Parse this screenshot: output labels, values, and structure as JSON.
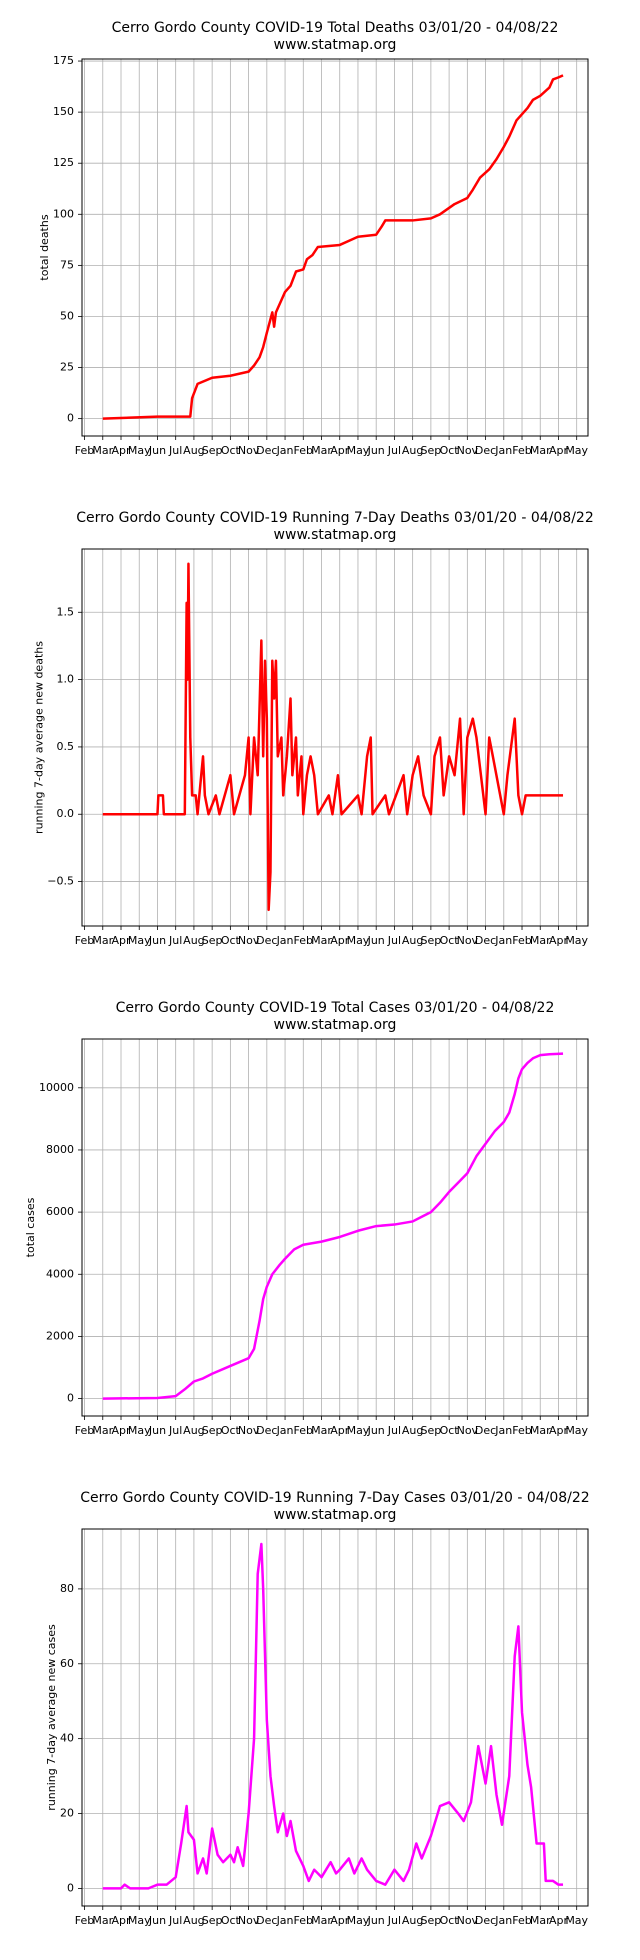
{
  "chart_data": [
    {
      "type": "line",
      "title": "Cerro Gordo County COVID-19 Total Deaths 03/01/20 - 04/08/22",
      "subtitle": "www.statmap.org",
      "y_label": "total deaths",
      "color": "#ff0000",
      "grid": true,
      "xlim": [
        -0.14,
        27.62
      ],
      "ylim": [
        -8.5,
        176
      ],
      "xticks": [
        {
          "value": 0,
          "label": "Feb"
        },
        {
          "value": 1,
          "label": "Mar"
        },
        {
          "value": 2,
          "label": "Apr"
        },
        {
          "value": 3,
          "label": "May"
        },
        {
          "value": 4,
          "label": "Jun"
        },
        {
          "value": 5,
          "label": "Jul"
        },
        {
          "value": 6,
          "label": "Aug"
        },
        {
          "value": 7,
          "label": "Sep"
        },
        {
          "value": 8,
          "label": "Oct"
        },
        {
          "value": 9,
          "label": "Nov"
        },
        {
          "value": 10,
          "label": "Dec"
        },
        {
          "value": 11,
          "label": "Jan"
        },
        {
          "value": 12,
          "label": "Feb"
        },
        {
          "value": 13,
          "label": "Mar"
        },
        {
          "value": 14,
          "label": "Apr"
        },
        {
          "value": 15,
          "label": "May"
        },
        {
          "value": 16,
          "label": "Jun"
        },
        {
          "value": 17,
          "label": "Jul"
        },
        {
          "value": 18,
          "label": "Aug"
        },
        {
          "value": 19,
          "label": "Sep"
        },
        {
          "value": 20,
          "label": "Oct"
        },
        {
          "value": 21,
          "label": "Nov"
        },
        {
          "value": 22,
          "label": "Dec"
        },
        {
          "value": 23,
          "label": "Jan"
        },
        {
          "value": 24,
          "label": "Feb"
        },
        {
          "value": 25,
          "label": "Mar"
        },
        {
          "value": 26,
          "label": "Apr"
        },
        {
          "value": 27,
          "label": "May"
        }
      ],
      "yticks": [
        0,
        25,
        50,
        75,
        100,
        125,
        150,
        175
      ],
      "x": [
        1,
        4,
        5.8,
        5.9,
        6.2,
        7,
        8,
        9,
        9.3,
        9.6,
        9.8,
        10,
        10.3,
        10.4,
        10.5,
        10.8,
        11,
        11.3,
        11.6,
        12,
        12.2,
        12.5,
        12.8,
        14,
        14.5,
        15,
        16,
        16.3,
        16.5,
        18,
        19,
        19.5,
        20.3,
        21,
        21.3,
        21.7,
        22.2,
        22.6,
        23,
        23.3,
        23.7,
        24.3,
        24.6,
        25,
        25.5,
        25.7,
        26,
        26.25
      ],
      "values": [
        0,
        1,
        1,
        10,
        17,
        20,
        21,
        23,
        26,
        30,
        35,
        42,
        52,
        45,
        52,
        58,
        62,
        65,
        72,
        73,
        78,
        80,
        84,
        85,
        87,
        89,
        90,
        94,
        97,
        97,
        98,
        100,
        105,
        108,
        112,
        118,
        122,
        127,
        133,
        138,
        146,
        152,
        156,
        158,
        162,
        166,
        167,
        168
      ]
    },
    {
      "type": "line",
      "title": "Cerro Gordo County COVID-19 Running 7-Day Deaths 03/01/20 - 04/08/22",
      "subtitle": "www.statmap.org",
      "y_label": "running 7-day average new deaths",
      "color": "#ff0000",
      "grid": true,
      "xlim": [
        -0.14,
        27.62
      ],
      "ylim": [
        -0.83,
        1.97
      ],
      "xticks": [
        {
          "value": 0,
          "label": "Feb"
        },
        {
          "value": 1,
          "label": "Mar"
        },
        {
          "value": 2,
          "label": "Apr"
        },
        {
          "value": 3,
          "label": "May"
        },
        {
          "value": 4,
          "label": "Jun"
        },
        {
          "value": 5,
          "label": "Jul"
        },
        {
          "value": 6,
          "label": "Aug"
        },
        {
          "value": 7,
          "label": "Sep"
        },
        {
          "value": 8,
          "label": "Oct"
        },
        {
          "value": 9,
          "label": "Nov"
        },
        {
          "value": 10,
          "label": "Dec"
        },
        {
          "value": 11,
          "label": "Jan"
        },
        {
          "value": 12,
          "label": "Feb"
        },
        {
          "value": 13,
          "label": "Mar"
        },
        {
          "value": 14,
          "label": "Apr"
        },
        {
          "value": 15,
          "label": "May"
        },
        {
          "value": 16,
          "label": "Jun"
        },
        {
          "value": 17,
          "label": "Jul"
        },
        {
          "value": 18,
          "label": "Aug"
        },
        {
          "value": 19,
          "label": "Sep"
        },
        {
          "value": 20,
          "label": "Oct"
        },
        {
          "value": 21,
          "label": "Nov"
        },
        {
          "value": 22,
          "label": "Dec"
        },
        {
          "value": 23,
          "label": "Jan"
        },
        {
          "value": 24,
          "label": "Feb"
        },
        {
          "value": 25,
          "label": "Mar"
        },
        {
          "value": 26,
          "label": "Apr"
        },
        {
          "value": 27,
          "label": "May"
        }
      ],
      "yticks": [
        {
          "value": -0.5,
          "label": "−0.5"
        },
        {
          "value": 0,
          "label": "0.0"
        },
        0.5,
        {
          "value": 1,
          "label": "1.0"
        },
        1.5
      ],
      "x": [
        1,
        4,
        4.05,
        4.3,
        4.35,
        5.5,
        5.6,
        5.65,
        5.7,
        5.8,
        5.9,
        6.1,
        6.2,
        6.4,
        6.5,
        6.6,
        6.8,
        7.2,
        7.4,
        8,
        8.2,
        8.8,
        9,
        9.1,
        9.3,
        9.5,
        9.7,
        9.8,
        9.9,
        10,
        10.1,
        10.2,
        10.3,
        10.4,
        10.5,
        10.6,
        10.8,
        10.9,
        11.1,
        11.3,
        11.4,
        11.6,
        11.7,
        11.9,
        12,
        12.2,
        12.4,
        12.6,
        12.8,
        13.4,
        13.6,
        13.9,
        14.1,
        15,
        15.2,
        15.5,
        15.7,
        15.8,
        16.5,
        16.7,
        17.5,
        17.7,
        18,
        18.3,
        18.6,
        19,
        19.2,
        19.5,
        19.7,
        20,
        20.3,
        20.6,
        20.8,
        21,
        21.3,
        21.5,
        22,
        22.2,
        22.4,
        23,
        23.2,
        23.6,
        23.8,
        24,
        24.2,
        26.25
      ],
      "values": [
        0,
        0,
        0.14,
        0.14,
        0,
        0,
        1.57,
        1,
        1.86,
        0.57,
        0.14,
        0.14,
        0,
        0.29,
        0.43,
        0.14,
        0,
        0.14,
        0,
        0.29,
        0,
        0.29,
        0.57,
        0,
        0.57,
        0.29,
        1.29,
        0.43,
        1.14,
        0.71,
        -0.71,
        -0.43,
        1.14,
        0.86,
        1.14,
        0.43,
        0.57,
        0.14,
        0.43,
        0.86,
        0.29,
        0.57,
        0.14,
        0.43,
        0,
        0.29,
        0.43,
        0.29,
        0,
        0.14,
        0,
        0.29,
        0,
        0.14,
        0,
        0.43,
        0.57,
        0,
        0.14,
        0,
        0.29,
        0,
        0.29,
        0.43,
        0.14,
        0,
        0.43,
        0.57,
        0.14,
        0.43,
        0.29,
        0.71,
        0,
        0.57,
        0.71,
        0.57,
        0,
        0.57,
        0.43,
        0,
        0.29,
        0.71,
        0.14,
        0,
        0.14,
        0.14
      ]
    },
    {
      "type": "line",
      "title": "Cerro Gordo County COVID-19 Total Cases 03/01/20 - 04/08/22",
      "subtitle": "www.statmap.org",
      "y_label": "total cases",
      "color": "#ff00ff",
      "grid": true,
      "xlim": [
        -0.14,
        27.62
      ],
      "ylim": [
        -560,
        11570
      ],
      "xticks": [
        {
          "value": 0,
          "label": "Feb"
        },
        {
          "value": 1,
          "label": "Mar"
        },
        {
          "value": 2,
          "label": "Apr"
        },
        {
          "value": 3,
          "label": "May"
        },
        {
          "value": 4,
          "label": "Jun"
        },
        {
          "value": 5,
          "label": "Jul"
        },
        {
          "value": 6,
          "label": "Aug"
        },
        {
          "value": 7,
          "label": "Sep"
        },
        {
          "value": 8,
          "label": "Oct"
        },
        {
          "value": 9,
          "label": "Nov"
        },
        {
          "value": 10,
          "label": "Dec"
        },
        {
          "value": 11,
          "label": "Jan"
        },
        {
          "value": 12,
          "label": "Feb"
        },
        {
          "value": 13,
          "label": "Mar"
        },
        {
          "value": 14,
          "label": "Apr"
        },
        {
          "value": 15,
          "label": "May"
        },
        {
          "value": 16,
          "label": "Jun"
        },
        {
          "value": 17,
          "label": "Jul"
        },
        {
          "value": 18,
          "label": "Aug"
        },
        {
          "value": 19,
          "label": "Sep"
        },
        {
          "value": 20,
          "label": "Oct"
        },
        {
          "value": 21,
          "label": "Nov"
        },
        {
          "value": 22,
          "label": "Dec"
        },
        {
          "value": 23,
          "label": "Jan"
        },
        {
          "value": 24,
          "label": "Feb"
        },
        {
          "value": 25,
          "label": "Mar"
        },
        {
          "value": 26,
          "label": "Apr"
        },
        {
          "value": 27,
          "label": "May"
        }
      ],
      "yticks": [
        0,
        2000,
        4000,
        6000,
        8000,
        10000
      ],
      "x": [
        1,
        4,
        5,
        5.5,
        6,
        6.5,
        7,
        8,
        9,
        9.3,
        9.6,
        9.8,
        10,
        10.3,
        10.7,
        11,
        11.5,
        12,
        13,
        14,
        15,
        16,
        17,
        18,
        18.5,
        19,
        19.5,
        20,
        20.5,
        21,
        21.5,
        22,
        22.5,
        23,
        23.3,
        23.6,
        23.8,
        24,
        24.3,
        24.6,
        25,
        25.5,
        26.25
      ],
      "values": [
        0,
        20,
        80,
        300,
        550,
        650,
        800,
        1050,
        1300,
        1600,
        2500,
        3200,
        3600,
        4000,
        4300,
        4500,
        4800,
        4950,
        5050,
        5200,
        5400,
        5550,
        5600,
        5700,
        5850,
        6000,
        6300,
        6650,
        6950,
        7250,
        7800,
        8200,
        8600,
        8900,
        9200,
        9800,
        10300,
        10600,
        10800,
        10950,
        11050,
        11080,
        11100
      ]
    },
    {
      "type": "line",
      "title": "Cerro Gordo County COVID-19 Running 7-Day Cases 03/01/20 - 04/08/22",
      "subtitle": "www.statmap.org",
      "y_label": "running 7-day average new cases",
      "color": "#ff00ff",
      "grid": true,
      "xlim": [
        -0.14,
        27.62
      ],
      "ylim": [
        -4.7,
        96
      ],
      "xticks": [
        {
          "value": 0,
          "label": "Feb"
        },
        {
          "value": 1,
          "label": "Mar"
        },
        {
          "value": 2,
          "label": "Apr"
        },
        {
          "value": 3,
          "label": "May"
        },
        {
          "value": 4,
          "label": "Jun"
        },
        {
          "value": 5,
          "label": "Jul"
        },
        {
          "value": 6,
          "label": "Aug"
        },
        {
          "value": 7,
          "label": "Sep"
        },
        {
          "value": 8,
          "label": "Oct"
        },
        {
          "value": 9,
          "label": "Nov"
        },
        {
          "value": 10,
          "label": "Dec"
        },
        {
          "value": 11,
          "label": "Jan"
        },
        {
          "value": 12,
          "label": "Feb"
        },
        {
          "value": 13,
          "label": "Mar"
        },
        {
          "value": 14,
          "label": "Apr"
        },
        {
          "value": 15,
          "label": "May"
        },
        {
          "value": 16,
          "label": "Jun"
        },
        {
          "value": 17,
          "label": "Jul"
        },
        {
          "value": 18,
          "label": "Aug"
        },
        {
          "value": 19,
          "label": "Sep"
        },
        {
          "value": 20,
          "label": "Oct"
        },
        {
          "value": 21,
          "label": "Nov"
        },
        {
          "value": 22,
          "label": "Dec"
        },
        {
          "value": 23,
          "label": "Jan"
        },
        {
          "value": 24,
          "label": "Feb"
        },
        {
          "value": 25,
          "label": "Mar"
        },
        {
          "value": 26,
          "label": "Apr"
        },
        {
          "value": 27,
          "label": "May"
        }
      ],
      "yticks": [
        0,
        20,
        40,
        60,
        80
      ],
      "x": [
        1,
        2,
        2.2,
        2.5,
        3.5,
        4,
        4.5,
        5,
        5.3,
        5.6,
        5.7,
        6,
        6.2,
        6.5,
        6.7,
        7,
        7.3,
        7.6,
        8,
        8.2,
        8.4,
        8.7,
        9,
        9.3,
        9.5,
        9.7,
        9.8,
        10,
        10.2,
        10.4,
        10.6,
        10.9,
        11.1,
        11.3,
        11.6,
        12,
        12.3,
        12.6,
        13,
        13.5,
        13.8,
        14,
        14.5,
        14.8,
        15.2,
        15.5,
        16,
        16.5,
        17,
        17.5,
        17.8,
        18.2,
        18.5,
        19,
        19.5,
        20,
        20.5,
        20.8,
        21.2,
        21.6,
        22,
        22.3,
        22.6,
        22.9,
        23.3,
        23.6,
        23.8,
        24,
        24.3,
        24.5,
        24.8,
        25.2,
        25.3,
        25.7,
        26,
        26.25
      ],
      "values": [
        0,
        0,
        1,
        0,
        0,
        1,
        1,
        3,
        12,
        22,
        15,
        13,
        4,
        8,
        4,
        16,
        9,
        7,
        9,
        7,
        11,
        6,
        20,
        40,
        84,
        92,
        80,
        45,
        30,
        22,
        15,
        20,
        14,
        18,
        10,
        6,
        2,
        5,
        3,
        7,
        4,
        5,
        8,
        4,
        8,
        5,
        2,
        1,
        5,
        2,
        5,
        12,
        8,
        14,
        22,
        23,
        20,
        18,
        23,
        38,
        28,
        38,
        25,
        17,
        30,
        62,
        70,
        47,
        33,
        27,
        12,
        12,
        2,
        2,
        1,
        1
      ]
    }
  ]
}
